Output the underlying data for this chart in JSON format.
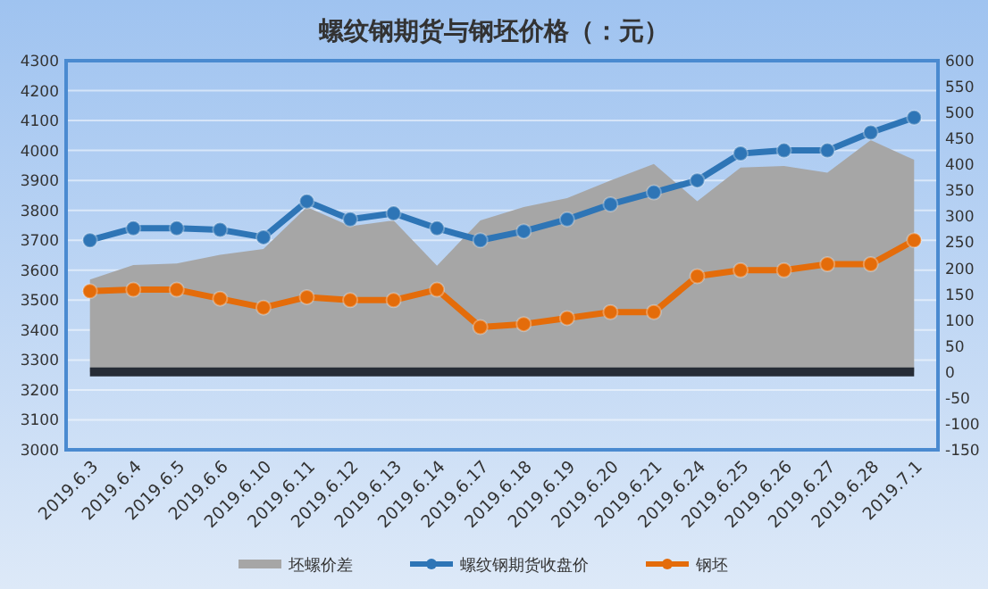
{
  "chart_data": {
    "type": "line",
    "title": "螺纹钢期货与钢坯价格（：元）",
    "categories": [
      "2019.6.3",
      "2019.6.4",
      "2019.6.5",
      "2019.6.6",
      "2019.6.10",
      "2019.6.11",
      "2019.6.12",
      "2019.6.13",
      "2019.6.14",
      "2019.6.17",
      "2019.6.18",
      "2019.6.19",
      "2019.6.20",
      "2019.6.21",
      "2019.6.24",
      "2019.6.25",
      "2019.6.26",
      "2019.6.27",
      "2019.6.28",
      "2019.7.1"
    ],
    "series": [
      {
        "name": "坯螺价差",
        "type": "area",
        "axis": "y2",
        "color": "#a6a6a6",
        "values": [
          178,
          206,
          209,
          226,
          237,
          318,
          281,
          292,
          205,
          292,
          318,
          335,
          369,
          401,
          329,
          394,
          397,
          384,
          447,
          409
        ]
      },
      {
        "name": "螺纹钢期货收盘价",
        "color": "#2e75b6",
        "marker": "circle",
        "values": [
          3700,
          3740,
          3740,
          3735,
          3710,
          3830,
          3770,
          3790,
          3740,
          3700,
          3730,
          3770,
          3820,
          3860,
          3900,
          3990,
          4000,
          4000,
          4060,
          4110
        ]
      },
      {
        "name": "钢坯",
        "color": "#e46c0a",
        "marker": "circle",
        "values": [
          3530,
          3535,
          3535,
          3505,
          3475,
          3510,
          3500,
          3500,
          3535,
          3410,
          3420,
          3440,
          3460,
          3460,
          3580,
          3600,
          3600,
          3620,
          3620,
          3700
        ]
      }
    ],
    "ylim": [
      3000,
      4300
    ],
    "yticks": [
      3000,
      3100,
      3200,
      3300,
      3400,
      3500,
      3600,
      3700,
      3800,
      3900,
      4000,
      4100,
      4200,
      4300
    ],
    "y2lim": [
      -150,
      600
    ],
    "y2ticks": [
      -150,
      -100,
      -50,
      0,
      50,
      100,
      150,
      200,
      250,
      300,
      350,
      400,
      450,
      500,
      550,
      600
    ],
    "ref_lines": [
      {
        "axis": "y2",
        "value": 0,
        "color": "#262c36"
      }
    ],
    "grid": "y",
    "legend": "bottom",
    "line_style": "solid"
  }
}
